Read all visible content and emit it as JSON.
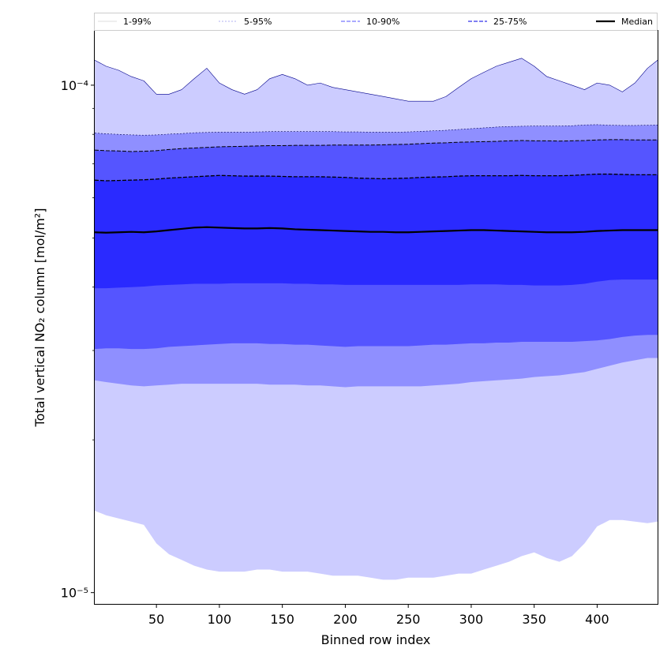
{
  "chart_data": {
    "type": "area",
    "title": "",
    "xlabel": "Binned row index",
    "ylabel": "Total vertical NO₂ column [mol/m²]",
    "xlim": [
      1,
      448
    ],
    "ylim": [
      9.5e-06,
      0.000128
    ],
    "yscale": "log",
    "x_ticks": [
      50,
      100,
      150,
      200,
      250,
      300,
      350,
      400
    ],
    "y_major_ticks": [
      1e-05,
      0.0001
    ],
    "y_major_tick_labels": [
      "10⁻⁵",
      "10⁻⁴"
    ],
    "grid": false,
    "legend": {
      "placement": "top, above plot",
      "entries": [
        "1-99%",
        "5-95%",
        "10-90%",
        "25-75%",
        "Median"
      ]
    },
    "colors": {
      "band_1_99": "#ccccff",
      "band_5_95": "#8f8fff",
      "band_10_90": "#5555ff",
      "band_25_75": "#2a2aff",
      "median_line": "#000000",
      "p99_edge": "#00008b"
    },
    "x": [
      1,
      10,
      20,
      30,
      40,
      50,
      60,
      70,
      80,
      90,
      100,
      110,
      120,
      130,
      140,
      150,
      160,
      170,
      180,
      190,
      200,
      210,
      220,
      230,
      240,
      250,
      260,
      270,
      280,
      290,
      300,
      310,
      320,
      330,
      340,
      350,
      360,
      370,
      380,
      390,
      400,
      410,
      420,
      430,
      440,
      448
    ],
    "series": [
      {
        "name": "1-99%",
        "role": "p01",
        "values": [
          1.45e-05,
          1.42e-05,
          1.4e-05,
          1.38e-05,
          1.36e-05,
          1.25e-05,
          1.19e-05,
          1.16e-05,
          1.13e-05,
          1.11e-05,
          1.1e-05,
          1.1e-05,
          1.1e-05,
          1.11e-05,
          1.11e-05,
          1.1e-05,
          1.1e-05,
          1.1e-05,
          1.09e-05,
          1.08e-05,
          1.08e-05,
          1.08e-05,
          1.07e-05,
          1.06e-05,
          1.06e-05,
          1.07e-05,
          1.07e-05,
          1.07e-05,
          1.08e-05,
          1.09e-05,
          1.09e-05,
          1.11e-05,
          1.13e-05,
          1.15e-05,
          1.18e-05,
          1.2e-05,
          1.17e-05,
          1.15e-05,
          1.18e-05,
          1.25e-05,
          1.35e-05,
          1.39e-05,
          1.39e-05,
          1.38e-05,
          1.37e-05,
          1.38e-05
        ]
      },
      {
        "name": "5-95%",
        "role": "p05",
        "values": [
          2.62e-05,
          2.6e-05,
          2.58e-05,
          2.56e-05,
          2.55e-05,
          2.56e-05,
          2.57e-05,
          2.58e-05,
          2.58e-05,
          2.58e-05,
          2.58e-05,
          2.58e-05,
          2.58e-05,
          2.58e-05,
          2.57e-05,
          2.57e-05,
          2.57e-05,
          2.56e-05,
          2.56e-05,
          2.55e-05,
          2.54e-05,
          2.55e-05,
          2.55e-05,
          2.55e-05,
          2.55e-05,
          2.55e-05,
          2.55e-05,
          2.56e-05,
          2.57e-05,
          2.58e-05,
          2.6e-05,
          2.61e-05,
          2.62e-05,
          2.63e-05,
          2.64e-05,
          2.66e-05,
          2.67e-05,
          2.68e-05,
          2.7e-05,
          2.72e-05,
          2.76e-05,
          2.8e-05,
          2.84e-05,
          2.87e-05,
          2.9e-05,
          2.9e-05
        ]
      },
      {
        "name": "10-90%",
        "role": "p10",
        "values": [
          3.02e-05,
          3.03e-05,
          3.03e-05,
          3.02e-05,
          3.02e-05,
          3.03e-05,
          3.05e-05,
          3.06e-05,
          3.07e-05,
          3.08e-05,
          3.09e-05,
          3.1e-05,
          3.1e-05,
          3.1e-05,
          3.09e-05,
          3.09e-05,
          3.08e-05,
          3.08e-05,
          3.07e-05,
          3.06e-05,
          3.05e-05,
          3.06e-05,
          3.06e-05,
          3.06e-05,
          3.06e-05,
          3.06e-05,
          3.07e-05,
          3.08e-05,
          3.08e-05,
          3.09e-05,
          3.1e-05,
          3.1e-05,
          3.11e-05,
          3.11e-05,
          3.12e-05,
          3.12e-05,
          3.12e-05,
          3.12e-05,
          3.12e-05,
          3.13e-05,
          3.14e-05,
          3.16e-05,
          3.19e-05,
          3.21e-05,
          3.22e-05,
          3.22e-05
        ]
      },
      {
        "name": "25-75%",
        "role": "p25",
        "values": [
          3.98e-05,
          3.98e-05,
          3.99e-05,
          4e-05,
          4.01e-05,
          4.03e-05,
          4.04e-05,
          4.05e-05,
          4.06e-05,
          4.06e-05,
          4.06e-05,
          4.07e-05,
          4.07e-05,
          4.07e-05,
          4.07e-05,
          4.07e-05,
          4.06e-05,
          4.06e-05,
          4.05e-05,
          4.05e-05,
          4.04e-05,
          4.04e-05,
          4.04e-05,
          4.04e-05,
          4.04e-05,
          4.04e-05,
          4.04e-05,
          4.04e-05,
          4.04e-05,
          4.04e-05,
          4.05e-05,
          4.05e-05,
          4.05e-05,
          4.04e-05,
          4.04e-05,
          4.03e-05,
          4.03e-05,
          4.03e-05,
          4.04e-05,
          4.06e-05,
          4.1e-05,
          4.13e-05,
          4.14e-05,
          4.14e-05,
          4.14e-05,
          4.14e-05
        ]
      },
      {
        "name": "Median",
        "role": "p50",
        "values": [
          5.13e-05,
          5.12e-05,
          5.13e-05,
          5.14e-05,
          5.13e-05,
          5.15e-05,
          5.18e-05,
          5.21e-05,
          5.24e-05,
          5.25e-05,
          5.24e-05,
          5.23e-05,
          5.22e-05,
          5.22e-05,
          5.23e-05,
          5.22e-05,
          5.2e-05,
          5.19e-05,
          5.18e-05,
          5.17e-05,
          5.16e-05,
          5.15e-05,
          5.14e-05,
          5.14e-05,
          5.13e-05,
          5.13e-05,
          5.14e-05,
          5.15e-05,
          5.16e-05,
          5.17e-05,
          5.18e-05,
          5.18e-05,
          5.17e-05,
          5.16e-05,
          5.15e-05,
          5.14e-05,
          5.13e-05,
          5.13e-05,
          5.13e-05,
          5.14e-05,
          5.16e-05,
          5.17e-05,
          5.18e-05,
          5.18e-05,
          5.18e-05,
          5.18e-05
        ]
      },
      {
        "name": "25-75%",
        "role": "p75",
        "values": [
          6.5e-05,
          6.48e-05,
          6.49e-05,
          6.5e-05,
          6.51e-05,
          6.53e-05,
          6.56e-05,
          6.58e-05,
          6.6e-05,
          6.62e-05,
          6.64e-05,
          6.63e-05,
          6.62e-05,
          6.62e-05,
          6.62e-05,
          6.61e-05,
          6.6e-05,
          6.6e-05,
          6.6e-05,
          6.59e-05,
          6.58e-05,
          6.56e-05,
          6.55e-05,
          6.54e-05,
          6.55e-05,
          6.56e-05,
          6.58e-05,
          6.59e-05,
          6.6e-05,
          6.62e-05,
          6.63e-05,
          6.63e-05,
          6.63e-05,
          6.63e-05,
          6.64e-05,
          6.63e-05,
          6.63e-05,
          6.63e-05,
          6.64e-05,
          6.66e-05,
          6.68e-05,
          6.68e-05,
          6.67e-05,
          6.66e-05,
          6.66e-05,
          6.66e-05
        ]
      },
      {
        "name": "10-90%",
        "role": "p90",
        "values": [
          7.45e-05,
          7.43e-05,
          7.42e-05,
          7.4e-05,
          7.41e-05,
          7.43e-05,
          7.47e-05,
          7.5e-05,
          7.52e-05,
          7.54e-05,
          7.56e-05,
          7.57e-05,
          7.58e-05,
          7.59e-05,
          7.6e-05,
          7.6e-05,
          7.61e-05,
          7.61e-05,
          7.61e-05,
          7.62e-05,
          7.62e-05,
          7.62e-05,
          7.62e-05,
          7.63e-05,
          7.64e-05,
          7.65e-05,
          7.67e-05,
          7.69e-05,
          7.7e-05,
          7.72e-05,
          7.73e-05,
          7.74e-05,
          7.75e-05,
          7.77e-05,
          7.78e-05,
          7.77e-05,
          7.77e-05,
          7.76e-05,
          7.77e-05,
          7.78e-05,
          7.8e-05,
          7.81e-05,
          7.81e-05,
          7.8e-05,
          7.8e-05,
          7.8e-05
        ]
      },
      {
        "name": "5-95%",
        "role": "p95",
        "values": [
          8.05e-05,
          8.02e-05,
          8e-05,
          7.98e-05,
          7.97e-05,
          7.98e-05,
          8.01e-05,
          8.03e-05,
          8.06e-05,
          8.07e-05,
          8.08e-05,
          8.08e-05,
          8.08e-05,
          8.09e-05,
          8.1e-05,
          8.1e-05,
          8.1e-05,
          8.1e-05,
          8.1e-05,
          8.1e-05,
          8.09e-05,
          8.09e-05,
          8.08e-05,
          8.08e-05,
          8.08e-05,
          8.09e-05,
          8.11e-05,
          8.13e-05,
          8.15e-05,
          8.18e-05,
          8.21e-05,
          8.24e-05,
          8.27e-05,
          8.29e-05,
          8.3e-05,
          8.31e-05,
          8.31e-05,
          8.31e-05,
          8.32e-05,
          8.35e-05,
          8.36e-05,
          8.34e-05,
          8.33e-05,
          8.33e-05,
          8.34e-05,
          8.35e-05
        ]
      },
      {
        "name": "1-99%",
        "role": "p99",
        "values": [
          0.000112,
          0.000109,
          0.000107,
          0.000104,
          0.000102,
          9.6e-05,
          9.6e-05,
          9.8e-05,
          0.000103,
          0.000108,
          0.000101,
          9.8e-05,
          9.6e-05,
          9.8e-05,
          0.000103,
          0.000105,
          0.000103,
          0.0001,
          0.000101,
          9.9e-05,
          9.8e-05,
          9.7e-05,
          9.6e-05,
          9.5e-05,
          9.4e-05,
          9.3e-05,
          9.3e-05,
          9.3e-05,
          9.5e-05,
          9.9e-05,
          0.000103,
          0.000106,
          0.000109,
          0.000111,
          0.000113,
          0.000109,
          0.000104,
          0.000102,
          0.0001,
          9.8e-05,
          0.000101,
          0.0001,
          9.7e-05,
          0.000101,
          0.000108,
          0.000112
        ]
      }
    ]
  }
}
